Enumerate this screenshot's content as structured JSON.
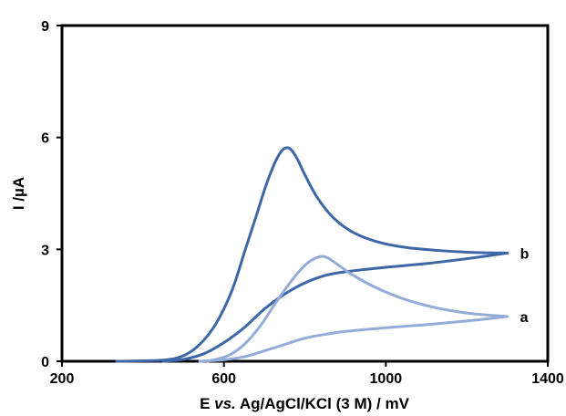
{
  "chart_data": {
    "type": "line",
    "title": "",
    "xlabel": {
      "pre": "E ",
      "italic": "vs.",
      "post": " Ag/AgCl/KCl (3 M) / mV"
    },
    "ylabel": "I /µA",
    "xlim": [
      200,
      1400
    ],
    "ylim": [
      0,
      9
    ],
    "xticks": [
      200,
      600,
      1000,
      1400
    ],
    "yticks": [
      0,
      3,
      6,
      9
    ],
    "grid": false,
    "series": [
      {
        "name": "",
        "label": "b",
        "color": "#3d67a7",
        "direction": "forward",
        "points": [
          [
            335,
            0.0
          ],
          [
            450,
            0.03
          ],
          [
            500,
            0.15
          ],
          [
            540,
            0.45
          ],
          [
            580,
            1.0
          ],
          [
            620,
            1.9
          ],
          [
            650,
            2.9
          ],
          [
            680,
            3.9
          ],
          [
            705,
            4.75
          ],
          [
            725,
            5.3
          ],
          [
            740,
            5.6
          ],
          [
            753,
            5.72
          ],
          [
            765,
            5.68
          ],
          [
            780,
            5.45
          ],
          [
            800,
            5.0
          ],
          [
            830,
            4.4
          ],
          [
            870,
            3.85
          ],
          [
            920,
            3.45
          ],
          [
            980,
            3.2
          ],
          [
            1050,
            3.05
          ],
          [
            1130,
            2.97
          ],
          [
            1210,
            2.92
          ],
          [
            1300,
            2.9
          ]
        ]
      },
      {
        "name": "",
        "label": "b",
        "color": "#3d67a7",
        "direction": "reverse",
        "points": [
          [
            1300,
            2.9
          ],
          [
            1200,
            2.75
          ],
          [
            1100,
            2.62
          ],
          [
            1000,
            2.52
          ],
          [
            900,
            2.4
          ],
          [
            850,
            2.3
          ],
          [
            800,
            2.1
          ],
          [
            750,
            1.8
          ],
          [
            700,
            1.4
          ],
          [
            650,
            0.9
          ],
          [
            600,
            0.5
          ],
          [
            550,
            0.2
          ],
          [
            500,
            0.05
          ],
          [
            450,
            0.0
          ]
        ]
      },
      {
        "name": "",
        "label": "a",
        "color": "#94acd8",
        "direction": "forward",
        "points": [
          [
            560,
            0.0
          ],
          [
            610,
            0.15
          ],
          [
            650,
            0.45
          ],
          [
            690,
            0.95
          ],
          [
            730,
            1.6
          ],
          [
            770,
            2.2
          ],
          [
            805,
            2.62
          ],
          [
            835,
            2.8
          ],
          [
            855,
            2.78
          ],
          [
            880,
            2.6
          ],
          [
            920,
            2.3
          ],
          [
            980,
            1.95
          ],
          [
            1050,
            1.65
          ],
          [
            1130,
            1.42
          ],
          [
            1210,
            1.28
          ],
          [
            1300,
            1.2
          ]
        ]
      },
      {
        "name": "",
        "label": "a",
        "color": "#94acd8",
        "direction": "reverse",
        "points": [
          [
            1300,
            1.2
          ],
          [
            1200,
            1.08
          ],
          [
            1100,
            0.98
          ],
          [
            1000,
            0.9
          ],
          [
            900,
            0.8
          ],
          [
            850,
            0.72
          ],
          [
            800,
            0.62
          ],
          [
            750,
            0.45
          ],
          [
            700,
            0.28
          ],
          [
            650,
            0.12
          ],
          [
            600,
            0.04
          ],
          [
            540,
            0.0
          ]
        ]
      }
    ],
    "series_labels": [
      {
        "text": "b",
        "x": 1300,
        "y": 2.9,
        "color": "#000000"
      },
      {
        "text": "a",
        "x": 1300,
        "y": 1.2,
        "color": "#000000"
      }
    ]
  }
}
